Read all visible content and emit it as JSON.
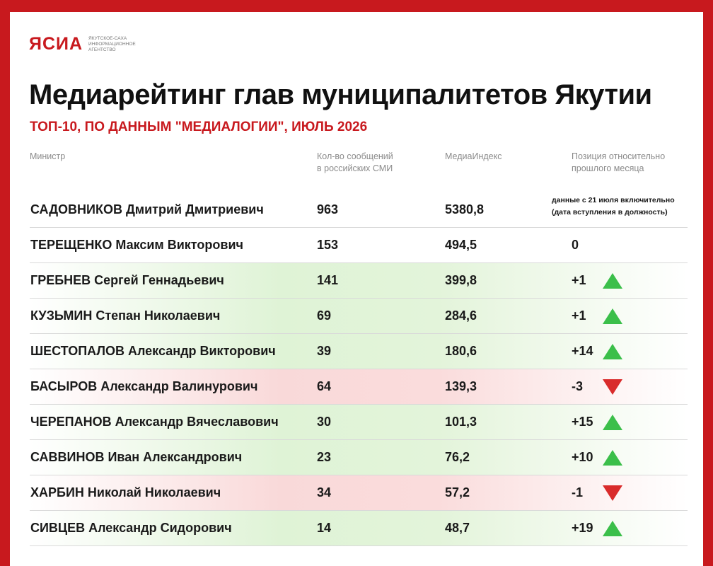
{
  "logo": {
    "mark": "ЯСИА",
    "tagline": [
      "ЯКУТСКОЕ-САХА",
      "ИНФОРМАЦИОННОЕ",
      "АГЕНТСТВО"
    ]
  },
  "title": "Медиарейтинг глав муниципалитетов Якутии",
  "subtitle": "ТОП-10, ПО ДАННЫМ \"МЕДИАЛОГИИ\", ИЮЛЬ 2026",
  "headers": {
    "name": "Министр",
    "messages": [
      "Кол-во сообщений",
      "в российских СМИ"
    ],
    "index": "МедиаИндекс",
    "position": [
      "Позиция относительно",
      "прошлого месяца"
    ]
  },
  "colors": {
    "accent": "#c8191e",
    "up": "#3bbf4a",
    "down": "#d92b2b"
  },
  "rows": [
    {
      "name": "САДОВНИКОВ Дмитрий Дмитриевич",
      "messages": "963",
      "index": "5380,8",
      "position": "",
      "note": [
        "данные с 21 июля включительно",
        "(дата вступления в должность)"
      ],
      "trend": "none"
    },
    {
      "name": "ТЕРЕЩЕНКО Максим Викторович",
      "messages": "153",
      "index": "494,5",
      "position": "0",
      "trend": "none"
    },
    {
      "name": "ГРЕБНЕВ Сергей Геннадьевич",
      "messages": "141",
      "index": "399,8",
      "position": "+1",
      "trend": "up"
    },
    {
      "name": "КУЗЬМИН Степан Николаевич",
      "messages": "69",
      "index": "284,6",
      "position": "+1",
      "trend": "up"
    },
    {
      "name": "ШЕСТОПАЛОВ Александр Викторович",
      "messages": "39",
      "index": "180,6",
      "position": "+14",
      "trend": "up"
    },
    {
      "name": "БАСЫРОВ Александр Валинурович",
      "messages": "64",
      "index": "139,3",
      "position": "-3",
      "trend": "down"
    },
    {
      "name": "ЧЕРЕПАНОВ Александр Вячеславович",
      "messages": "30",
      "index": "101,3",
      "position": "+15",
      "trend": "up"
    },
    {
      "name": "САВВИНОВ Иван Александрович",
      "messages": "23",
      "index": "76,2",
      "position": "+10",
      "trend": "up"
    },
    {
      "name": "ХАРБИН Николай Николаевич",
      "messages": "34",
      "index": "57,2",
      "position": "-1",
      "trend": "down"
    },
    {
      "name": "СИВЦЕВ Александр Сидорович",
      "messages": "14",
      "index": "48,7",
      "position": "+19",
      "trend": "up"
    }
  ]
}
